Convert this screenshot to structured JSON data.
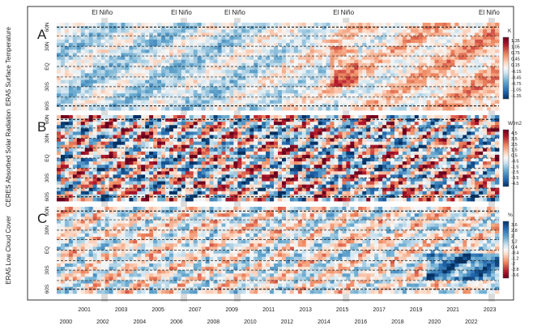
{
  "chart_data": [
    {
      "type": "heatmap",
      "panel_letter": "A",
      "ylabel": "ERA5 Surface Temperature",
      "y_tick_labels": [
        "60N",
        "30N",
        "EQ",
        "30S",
        "60S"
      ],
      "unit": "K",
      "colorbar_ticks": [
        "1.35",
        "1.05",
        "0.75",
        "0.45",
        "0.15",
        "-0.15",
        "-0.45",
        "-0.75",
        "-1.05",
        "-1.35"
      ],
      "range": [
        -1.5,
        1.5
      ]
    },
    {
      "type": "heatmap",
      "panel_letter": "B",
      "ylabel": "CERES Absorbed Solar Radiation",
      "y_tick_labels": [
        "60N",
        "30N",
        "EQ",
        "30S",
        "60S"
      ],
      "unit": "W/m2",
      "colorbar_ticks": [
        "4.5",
        "3.5",
        "2.5",
        "1.5",
        "0.5",
        "-0.5",
        "-1.5",
        "-2.5",
        "-3.5",
        "-4.5"
      ],
      "range": [
        -5,
        5
      ]
    },
    {
      "type": "heatmap",
      "panel_letter": "C",
      "ylabel": "ERA5 Low Cloud Cover",
      "y_tick_labels": [
        "60N",
        "30N",
        "EQ",
        "30S",
        "60S"
      ],
      "unit": "%",
      "colorbar_ticks": [
        "3.6",
        "2.8",
        "2",
        "1.2",
        "0.4",
        "-0.4",
        "-1.2",
        "-2",
        "-2.8",
        "-3.6"
      ],
      "range": [
        -4,
        4
      ]
    }
  ],
  "x_axis": {
    "years_upper_row": [
      "2001",
      "2003",
      "2005",
      "2007",
      "2009",
      "2011",
      "2013",
      "2015",
      "2017",
      "2019",
      "2021",
      "2023"
    ],
    "years_lower_row": [
      "2000",
      "2002",
      "2004",
      "2006",
      "2008",
      "2010",
      "2012",
      "2014",
      "2016",
      "2018",
      "2020",
      "2022"
    ],
    "range": [
      2000.0,
      2024.0
    ]
  },
  "el_nino": {
    "label": "El Niño",
    "events": [
      2002.6,
      2006.9,
      2009.8,
      2015.7,
      2023.6
    ]
  },
  "colors": {
    "warm": "#b2182b",
    "cold": "#2166ac",
    "neutral": "#f7f7f7",
    "event_band": "#bdbdbd"
  }
}
